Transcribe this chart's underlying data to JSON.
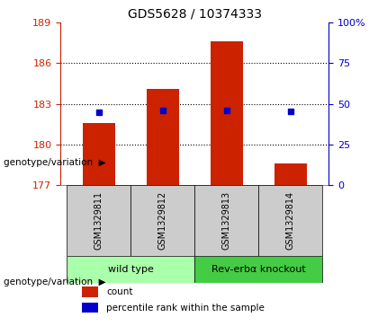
{
  "title": "GDS5628 / 10374333",
  "samples": [
    "GSM1329811",
    "GSM1329812",
    "GSM1329813",
    "GSM1329814"
  ],
  "counts": [
    181.6,
    184.1,
    187.6,
    178.6
  ],
  "percentile_ranks": [
    45.0,
    46.0,
    46.0,
    45.5
  ],
  "ylim_left": [
    177,
    189
  ],
  "ylim_right": [
    0,
    100
  ],
  "yticks_left": [
    177,
    180,
    183,
    186,
    189
  ],
  "yticks_right": [
    0,
    25,
    50,
    75,
    100
  ],
  "bar_color": "#CC2200",
  "marker_color": "#0000CC",
  "bar_width": 0.5,
  "bar_bottom": 177,
  "groups": [
    {
      "label": "wild type",
      "indices": [
        0,
        1
      ],
      "color": "#aaffaa"
    },
    {
      "label": "Rev-erbα knockout",
      "indices": [
        2,
        3
      ],
      "color": "#44cc44"
    }
  ],
  "xlabel_label": "genotype/variation",
  "legend_count_label": "count",
  "legend_percentile_label": "percentile rank within the sample",
  "plot_bg": "#ffffff",
  "title_fontsize": 10,
  "tick_fontsize": 8,
  "sample_label_fontsize": 7,
  "group_fontsize": 8,
  "legend_fontsize": 7.5,
  "grid_lines": [
    180,
    183,
    186
  ]
}
